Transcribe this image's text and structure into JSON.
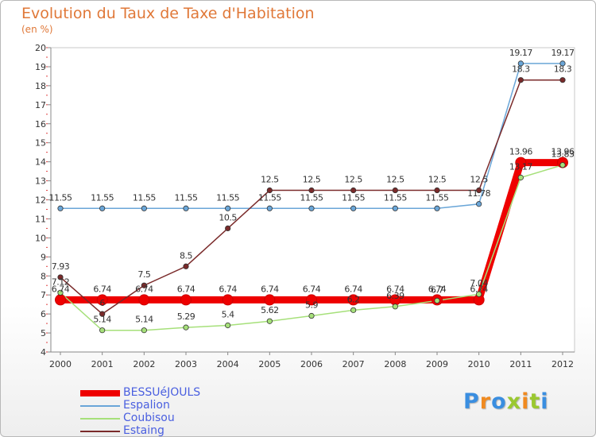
{
  "title": "Evolution du Taux de Taxe d'Habitation",
  "unit": "(en %)",
  "logo": {
    "text": "Proxiti",
    "colors": [
      "#3a8ee0",
      "#f08a20",
      "#3a8ee0",
      "#9ac830",
      "#f08a20",
      "#9ac830",
      "#3a8ee0"
    ]
  },
  "chart_data": {
    "type": "line",
    "x": [
      "2000",
      "2001",
      "2002",
      "2003",
      "2004",
      "2005",
      "2006",
      "2007",
      "2008",
      "2009",
      "2010",
      "2011",
      "2012"
    ],
    "ylim": [
      4,
      20
    ],
    "yticks": [
      4,
      5,
      6,
      7,
      8,
      9,
      10,
      11,
      12,
      13,
      14,
      15,
      16,
      17,
      18,
      19,
      20
    ],
    "grid": false,
    "legend_position": "bottom-left",
    "series": [
      {
        "name": "BESSUéJOULS",
        "color": "#ee0000",
        "width": 9,
        "values": [
          6.74,
          6.74,
          6.74,
          6.74,
          6.74,
          6.74,
          6.74,
          6.74,
          6.74,
          6.74,
          6.74,
          13.96,
          13.96
        ],
        "labels": [
          "6.74",
          "6.74",
          "6.74",
          "6.74",
          "6.74",
          "6.74",
          "6.74",
          "6.74",
          "6.74",
          "6.74",
          "6.74",
          "13.96",
          "13.96"
        ]
      },
      {
        "name": "Espalion",
        "color": "#6aa6d8",
        "width": 1.5,
        "values": [
          11.55,
          11.55,
          11.55,
          11.55,
          11.55,
          11.55,
          11.55,
          11.55,
          11.55,
          11.55,
          11.78,
          19.17,
          19.17
        ],
        "labels": [
          "11.55",
          "11.55",
          "11.55",
          "11.55",
          "11.55",
          "11.55",
          "11.55",
          "11.55",
          "11.55",
          "11.55",
          "11.78",
          "19.17",
          "19.17"
        ]
      },
      {
        "name": "Coubisou",
        "color": "#a6e07a",
        "width": 1.5,
        "values": [
          7.12,
          5.14,
          5.14,
          5.29,
          5.4,
          5.62,
          5.9,
          6.2,
          6.39,
          6.7,
          7.04,
          13.17,
          13.83
        ],
        "labels": [
          "7.12",
          "5.14",
          "5.14",
          "5.29",
          "5.4",
          "5.62",
          "5.9",
          "6.2",
          "6.39",
          "6.7",
          "7.04",
          "13.17",
          "13.83"
        ]
      },
      {
        "name": "Estaing",
        "color": "#7a2a2a",
        "width": 1.5,
        "values": [
          7.93,
          6,
          7.5,
          8.5,
          10.5,
          12.5,
          12.5,
          12.5,
          12.5,
          12.5,
          12.5,
          18.3,
          18.3
        ],
        "labels": [
          "7.93",
          "6",
          "7.5",
          "8.5",
          "10.5",
          "12.5",
          "12.5",
          "12.5",
          "12.5",
          "12.5",
          "12.5",
          "18.3",
          "18.3"
        ]
      }
    ]
  }
}
